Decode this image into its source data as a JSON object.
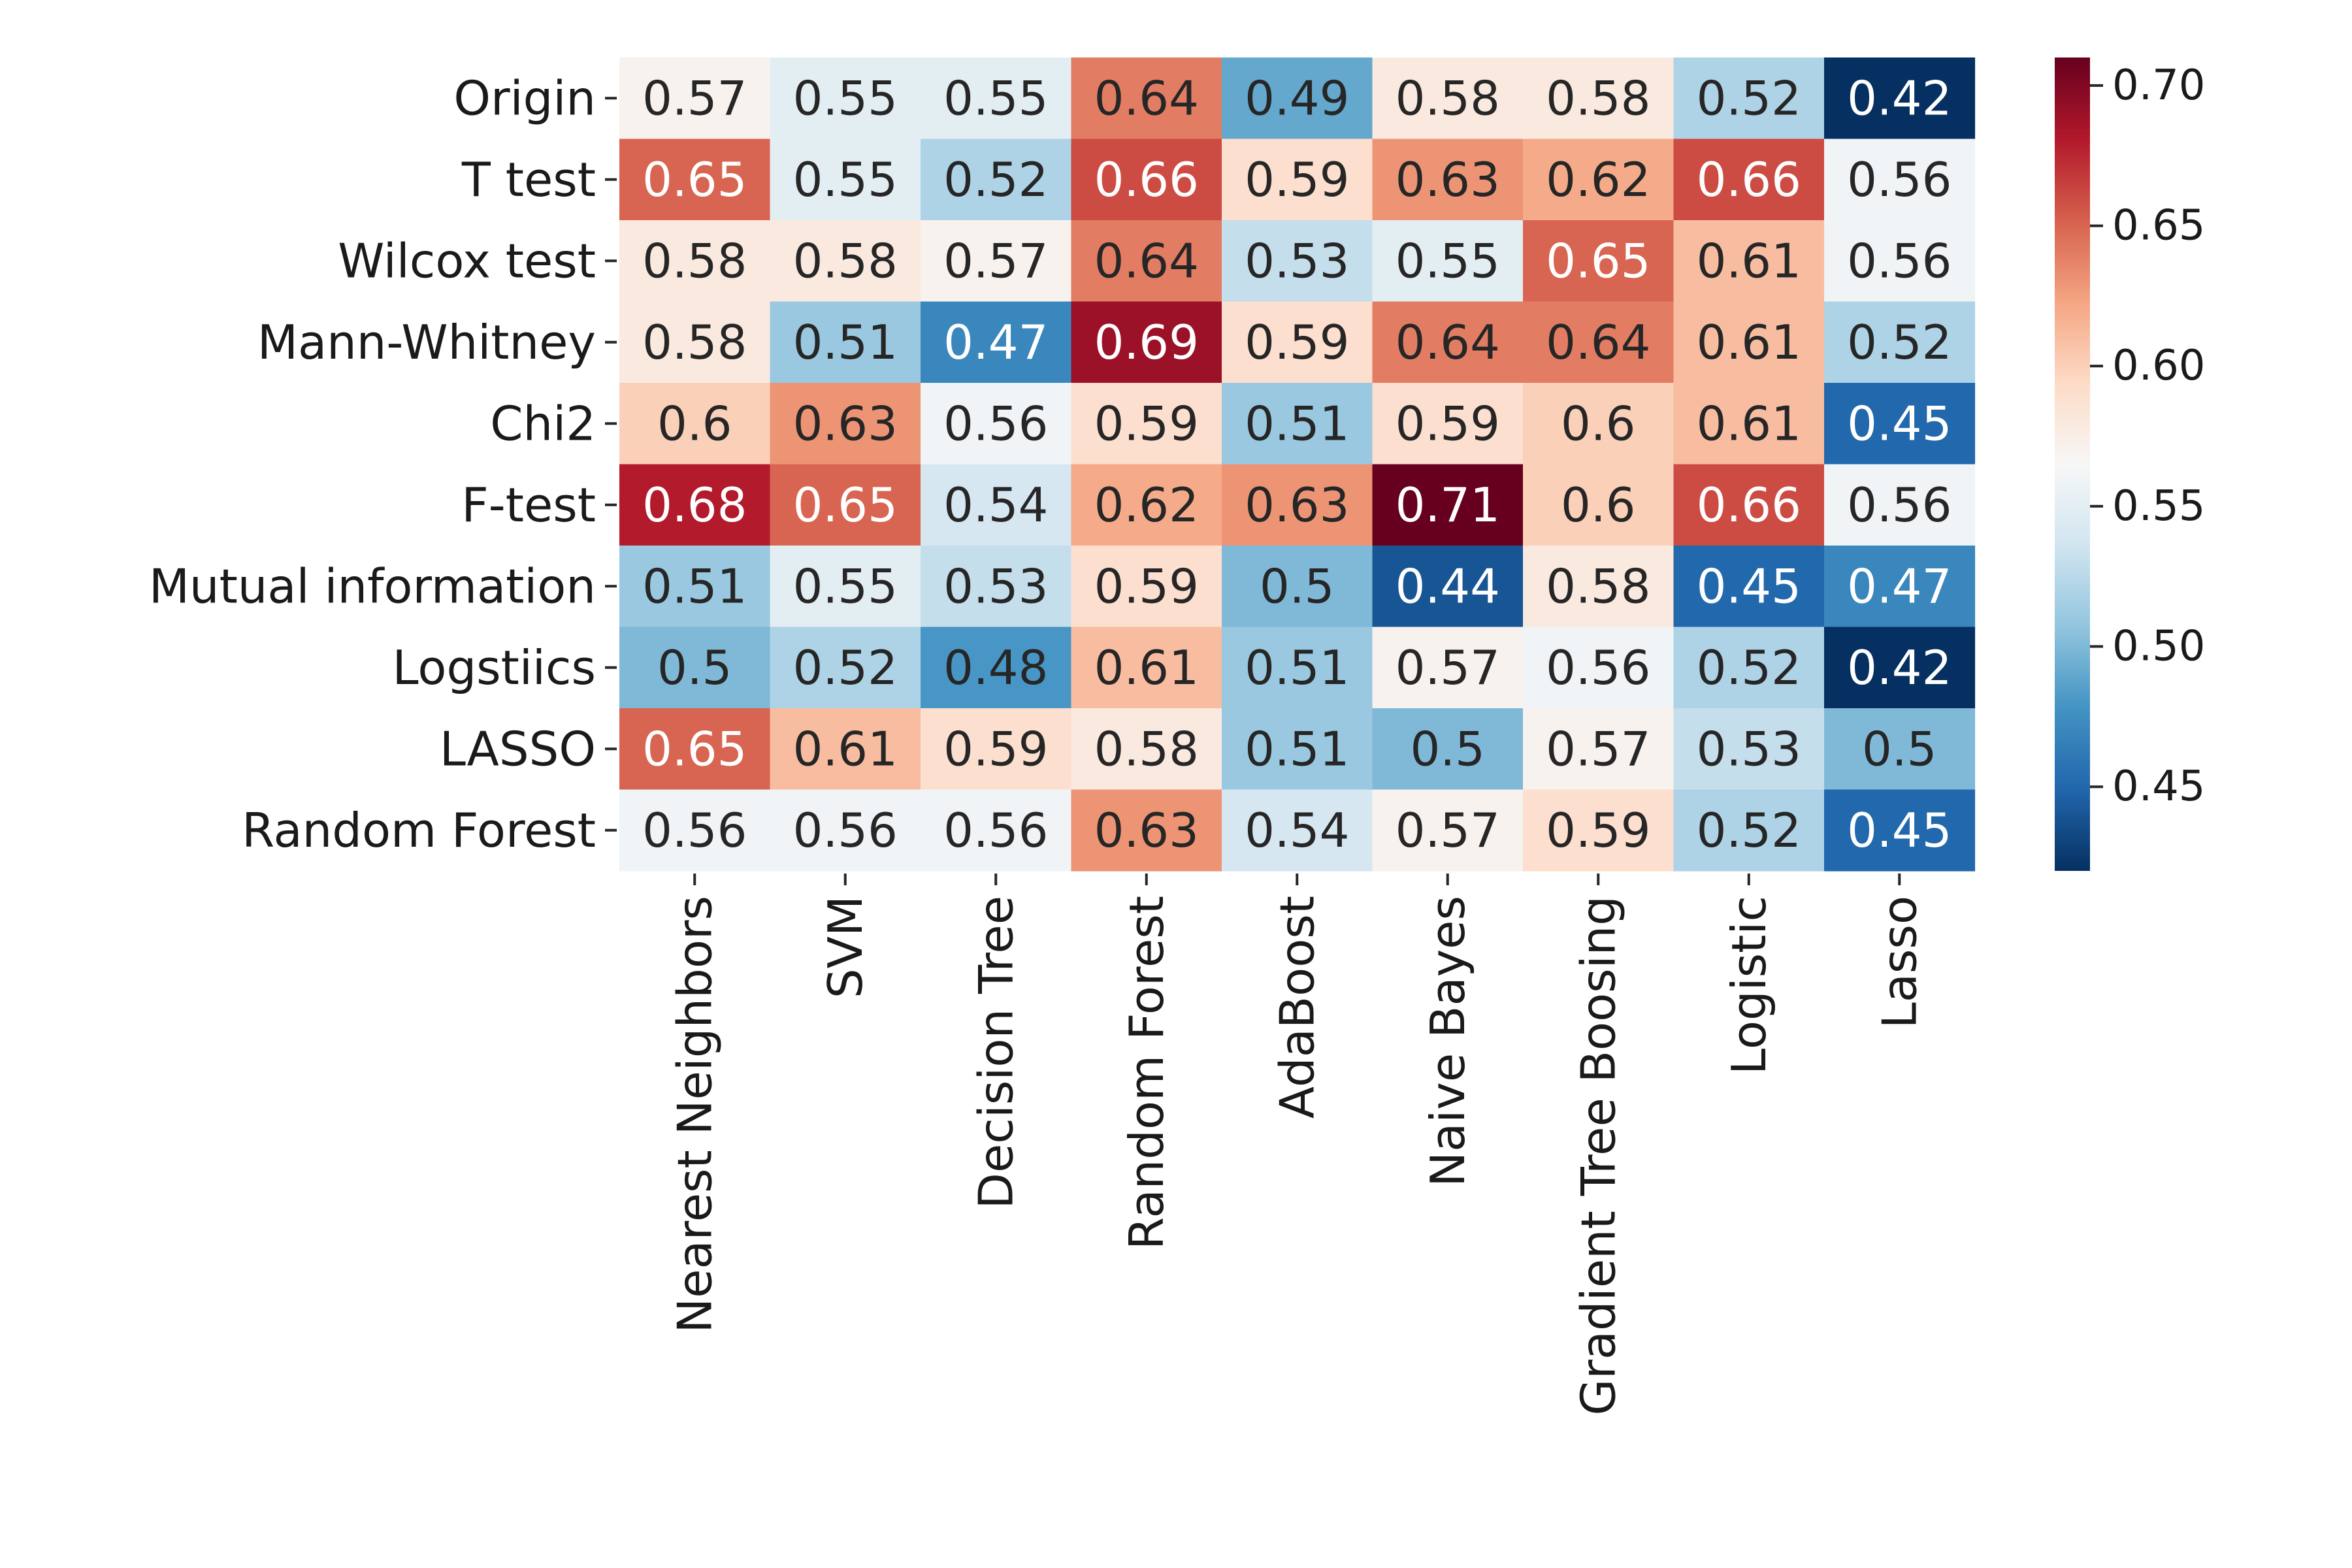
{
  "chart_data": {
    "type": "heatmap",
    "title": "",
    "xlabel": "",
    "ylabel": "",
    "rows": [
      "Origin",
      "T test",
      "Wilcox test",
      "Mann-Whitney",
      "Chi2",
      "F-test",
      "Mutual information",
      "Logstiics",
      "LASSO",
      "Random Forest"
    ],
    "columns": [
      "Nearest Neighbors",
      "SVM",
      "Decision Tree",
      "Random Forest",
      "AdaBoost",
      "Naive Bayes",
      "Gradient Tree Boosing",
      "Logistic",
      "Lasso"
    ],
    "values": [
      [
        0.57,
        0.55,
        0.55,
        0.64,
        0.49,
        0.58,
        0.58,
        0.52,
        0.42
      ],
      [
        0.65,
        0.55,
        0.52,
        0.66,
        0.59,
        0.63,
        0.62,
        0.66,
        0.56
      ],
      [
        0.58,
        0.58,
        0.57,
        0.64,
        0.53,
        0.55,
        0.65,
        0.61,
        0.56
      ],
      [
        0.58,
        0.51,
        0.47,
        0.69,
        0.59,
        0.64,
        0.64,
        0.61,
        0.52
      ],
      [
        0.6,
        0.63,
        0.56,
        0.59,
        0.51,
        0.59,
        0.6,
        0.61,
        0.45
      ],
      [
        0.68,
        0.65,
        0.54,
        0.62,
        0.63,
        0.71,
        0.6,
        0.66,
        0.56
      ],
      [
        0.51,
        0.55,
        0.53,
        0.59,
        0.5,
        0.44,
        0.58,
        0.45,
        0.47
      ],
      [
        0.5,
        0.52,
        0.48,
        0.61,
        0.51,
        0.57,
        0.56,
        0.52,
        0.42
      ],
      [
        0.65,
        0.61,
        0.59,
        0.58,
        0.51,
        0.5,
        0.57,
        0.53,
        0.5
      ],
      [
        0.56,
        0.56,
        0.56,
        0.63,
        0.54,
        0.57,
        0.59,
        0.52,
        0.45
      ]
    ],
    "value_labels": [
      [
        "0.57",
        "0.55",
        "0.55",
        "0.64",
        "0.49",
        "0.58",
        "0.58",
        "0.52",
        "0.42"
      ],
      [
        "0.65",
        "0.55",
        "0.52",
        "0.66",
        "0.59",
        "0.63",
        "0.62",
        "0.66",
        "0.56"
      ],
      [
        "0.58",
        "0.58",
        "0.57",
        "0.64",
        "0.53",
        "0.55",
        "0.65",
        "0.61",
        "0.56"
      ],
      [
        "0.58",
        "0.51",
        "0.47",
        "0.69",
        "0.59",
        "0.64",
        "0.64",
        "0.61",
        "0.52"
      ],
      [
        "0.6",
        "0.63",
        "0.56",
        "0.59",
        "0.51",
        "0.59",
        "0.6",
        "0.61",
        "0.45"
      ],
      [
        "0.68",
        "0.65",
        "0.54",
        "0.62",
        "0.63",
        "0.71",
        "0.6",
        "0.66",
        "0.56"
      ],
      [
        "0.51",
        "0.55",
        "0.53",
        "0.59",
        "0.5",
        "0.44",
        "0.58",
        "0.45",
        "0.47"
      ],
      [
        "0.5",
        "0.52",
        "0.48",
        "0.61",
        "0.51",
        "0.57",
        "0.56",
        "0.52",
        "0.42"
      ],
      [
        "0.65",
        "0.61",
        "0.59",
        "0.58",
        "0.51",
        "0.5",
        "0.57",
        "0.53",
        "0.5"
      ],
      [
        "0.56",
        "0.56",
        "0.56",
        "0.63",
        "0.54",
        "0.57",
        "0.59",
        "0.52",
        "0.45"
      ]
    ],
    "colormap": "RdBu_r",
    "colormap_stops": [
      "#053061",
      "#2166ac",
      "#4393c3",
      "#92c5de",
      "#d1e5f0",
      "#f7f7f7",
      "#fddbc7",
      "#f4a582",
      "#d6604d",
      "#b2182b",
      "#67001f"
    ],
    "color_range": [
      0.42,
      0.71
    ],
    "colorbar": {
      "ticks": [
        0.45,
        0.5,
        0.55,
        0.6,
        0.65,
        0.7
      ],
      "tick_labels": [
        "0.45",
        "0.50",
        "0.55",
        "0.60",
        "0.65",
        "0.70"
      ]
    },
    "annotation_colors": {
      "dark": "#262626",
      "light": "#ffffff"
    },
    "grid": false,
    "legend": "colorbar-right"
  }
}
